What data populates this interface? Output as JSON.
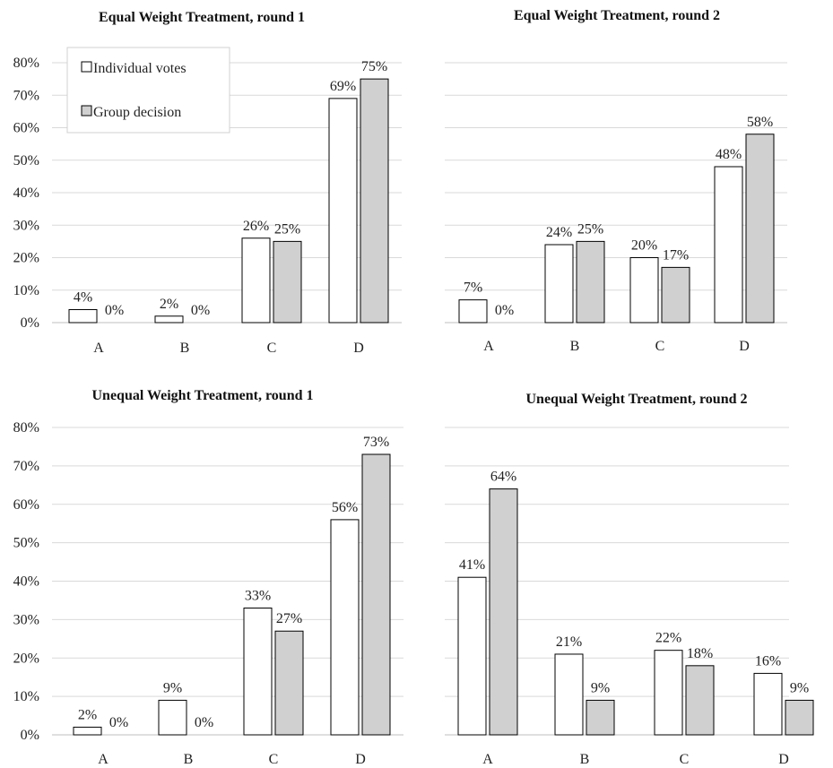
{
  "legend": {
    "items": [
      {
        "name": "Individual votes",
        "color": "#ffffff"
      },
      {
        "name": "Group decision",
        "color": "#d0d0d0"
      }
    ]
  },
  "chart_data": [
    {
      "type": "bar",
      "title": "Equal Weight Treatment, round 1",
      "categories": [
        "A",
        "B",
        "C",
        "D"
      ],
      "series": [
        {
          "name": "Individual votes",
          "values": [
            4,
            2,
            26,
            69
          ],
          "labels": [
            "4%",
            "2%",
            "26%",
            "69%"
          ]
        },
        {
          "name": "Group decision",
          "values": [
            0,
            0,
            25,
            75
          ],
          "labels": [
            "0%",
            "0%",
            "25%",
            "75%"
          ]
        }
      ],
      "ylim": [
        0,
        80
      ],
      "yticks": [
        "0%",
        "10%",
        "20%",
        "30%",
        "40%",
        "50%",
        "60%",
        "70%",
        "80%"
      ],
      "show_ytick_labels": true,
      "legend": "top-left",
      "grid": true
    },
    {
      "type": "bar",
      "title": "Equal Weight Treatment, round 2",
      "categories": [
        "A",
        "B",
        "C",
        "D"
      ],
      "series": [
        {
          "name": "Individual votes",
          "values": [
            7,
            24,
            20,
            48
          ],
          "labels": [
            "7%",
            "24%",
            "20%",
            "48%"
          ]
        },
        {
          "name": "Group decision",
          "values": [
            0,
            25,
            17,
            58
          ],
          "labels": [
            "0%",
            "25%",
            "17%",
            "58%"
          ]
        }
      ],
      "ylim": [
        0,
        80
      ],
      "yticks": [
        "0%",
        "10%",
        "20%",
        "30%",
        "40%",
        "50%",
        "60%",
        "70%",
        "80%"
      ],
      "show_ytick_labels": false,
      "grid": true
    },
    {
      "type": "bar",
      "title": "Unequal Weight Treatment, round 1",
      "categories": [
        "A",
        "B",
        "C",
        "D"
      ],
      "series": [
        {
          "name": "Individual votes",
          "values": [
            2,
            9,
            33,
            56
          ],
          "labels": [
            "2%",
            "9%",
            "33%",
            "56%"
          ]
        },
        {
          "name": "Group decision",
          "values": [
            0,
            0,
            27,
            73
          ],
          "labels": [
            "0%",
            "0%",
            "27%",
            "73%"
          ]
        }
      ],
      "ylim": [
        0,
        80
      ],
      "yticks": [
        "0%",
        "10%",
        "20%",
        "30%",
        "40%",
        "50%",
        "60%",
        "70%",
        "80%"
      ],
      "show_ytick_labels": true,
      "grid": true
    },
    {
      "type": "bar",
      "title": "Unequal Weight Treatment, round 2",
      "categories": [
        "A",
        "B",
        "C",
        "D"
      ],
      "series": [
        {
          "name": "Individual votes",
          "values": [
            41,
            21,
            22,
            16
          ],
          "labels": [
            "41%",
            "21%",
            "22%",
            "16%"
          ]
        },
        {
          "name": "Group decision",
          "values": [
            64,
            9,
            18,
            9
          ],
          "labels": [
            "64%",
            "9%",
            "18%",
            "9%"
          ]
        }
      ],
      "ylim": [
        0,
        80
      ],
      "yticks": [
        "0%",
        "10%",
        "20%",
        "30%",
        "40%",
        "50%",
        "60%",
        "70%",
        "80%"
      ],
      "show_ytick_labels": false,
      "grid": true
    }
  ]
}
